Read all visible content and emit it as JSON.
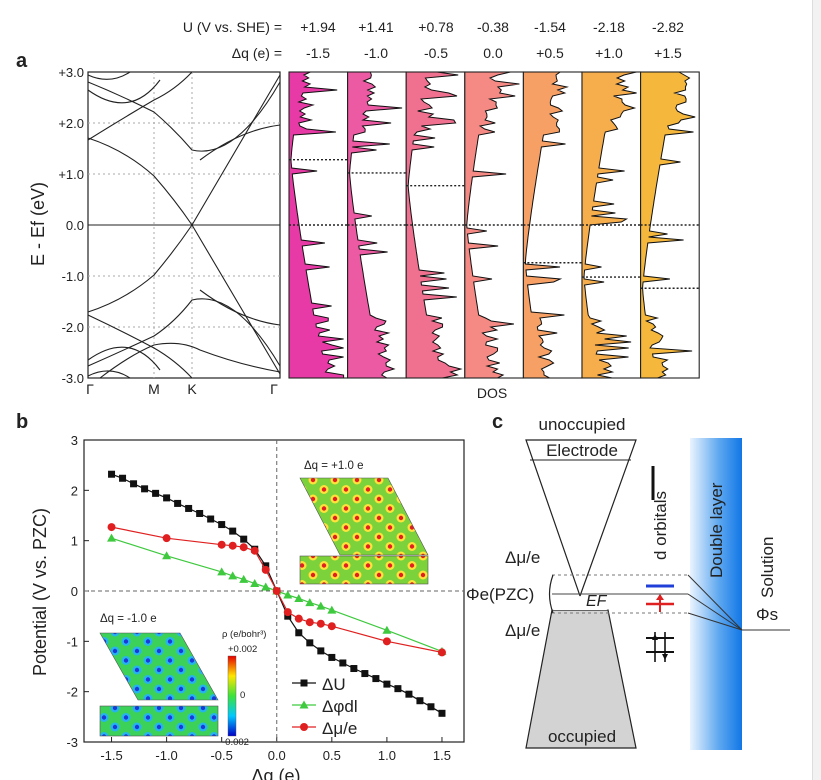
{
  "header": {
    "u_label": "U (V vs. SHE) =",
    "dq_label": "Δq (e) =",
    "u_values": [
      "+1.94",
      "+1.41",
      "+0.78",
      "-0.38",
      "-1.54",
      "-2.18",
      "-2.82"
    ],
    "dq_values": [
      "-1.5",
      "-1.0",
      "-0.5",
      "0.0",
      "+0.5",
      "+1.0",
      "+1.5"
    ]
  },
  "panel_a": {
    "label": "a",
    "ylabel": "E - Ef (eV)",
    "yticks": [
      "+3.0",
      "+2.0",
      "+1.0",
      "0.0",
      "-1.0",
      "-2.0",
      "-3.0"
    ],
    "kpoints": [
      "Γ",
      "M",
      "K",
      "Γ"
    ],
    "dos_label": "DOS",
    "dos_colors": [
      "#e83aa6",
      "#ec5aa3",
      "#f07090",
      "#f58a85",
      "#f7a065",
      "#f6ad4c",
      "#f6b83c"
    ],
    "fermi_levels_ev": [
      1.28,
      1.02,
      0.77,
      0.0,
      -0.74,
      -1.02,
      -1.24
    ]
  },
  "panel_b": {
    "label": "b",
    "inset_top": "Δq = +1.0 e",
    "inset_bottom": "Δq = -1.0 e",
    "colorbar_title": "ρ (e/bohr³)",
    "colorbar_ticks": [
      "+0.002",
      "0",
      "-0.002"
    ]
  },
  "panel_c": {
    "label": "c",
    "unoccupied": "unoccupied",
    "electrode": "Electrode",
    "occupied": "occupied",
    "dmu_top": "Δμ/e",
    "dmu_bottom": "Δμ/e",
    "phi_pzc": "Φe(PZC)",
    "ef": "EF",
    "d_orbitals": "d orbitals",
    "double_layer": "Double layer",
    "solution": "Solution",
    "phi_s": "Φs"
  },
  "chart_data": {
    "type": "scatter",
    "title": "",
    "xlabel": "Δq (e)",
    "ylabel": "Potential (V vs. PZC)",
    "xlim": [
      -1.75,
      1.7
    ],
    "ylim": [
      -3,
      3
    ],
    "xticks": [
      "-1.5",
      "-1.0",
      "-0.5",
      "0.0",
      "0.5",
      "1.0",
      "1.5"
    ],
    "yticks": [
      "3",
      "2",
      "1",
      "0",
      "-1",
      "-2",
      "-3"
    ],
    "series": [
      {
        "name": "ΔU",
        "color": "#111111",
        "marker": "square",
        "x": [
          -1.5,
          -1.4,
          -1.3,
          -1.2,
          -1.1,
          -1.0,
          -0.9,
          -0.8,
          -0.7,
          -0.6,
          -0.5,
          -0.4,
          -0.3,
          -0.2,
          -0.1,
          0.0,
          0.1,
          0.2,
          0.3,
          0.4,
          0.5,
          0.6,
          0.7,
          0.8,
          0.9,
          1.0,
          1.1,
          1.2,
          1.3,
          1.4,
          1.5
        ],
        "y": [
          2.32,
          2.24,
          2.13,
          2.03,
          1.94,
          1.85,
          1.74,
          1.64,
          1.54,
          1.43,
          1.32,
          1.19,
          1.03,
          0.83,
          0.5,
          0.0,
          -0.5,
          -0.83,
          -1.03,
          -1.19,
          -1.32,
          -1.43,
          -1.54,
          -1.64,
          -1.74,
          -1.85,
          -1.94,
          -2.05,
          -2.18,
          -2.3,
          -2.43
        ]
      },
      {
        "name": "Δφdl",
        "color": "#3ec93e",
        "marker": "triangle",
        "x": [
          -1.5,
          -1.0,
          -0.5,
          -0.4,
          -0.3,
          -0.2,
          -0.1,
          0.0,
          0.1,
          0.2,
          0.3,
          0.4,
          0.5,
          1.0,
          1.5
        ],
        "y": [
          1.05,
          0.7,
          0.38,
          0.3,
          0.23,
          0.15,
          0.08,
          0.0,
          -0.08,
          -0.15,
          -0.23,
          -0.3,
          -0.38,
          -0.78,
          -1.2
        ]
      },
      {
        "name": "Δμ/e",
        "color": "#e02020",
        "marker": "circle",
        "x": [
          -1.5,
          -1.0,
          -0.5,
          -0.4,
          -0.3,
          -0.2,
          -0.1,
          0.0,
          0.1,
          0.2,
          0.3,
          0.4,
          0.5,
          1.0,
          1.5
        ],
        "y": [
          1.27,
          1.05,
          0.92,
          0.9,
          0.87,
          0.8,
          0.42,
          0.0,
          -0.42,
          -0.55,
          -0.62,
          -0.65,
          -0.7,
          -1.0,
          -1.22
        ]
      }
    ]
  }
}
